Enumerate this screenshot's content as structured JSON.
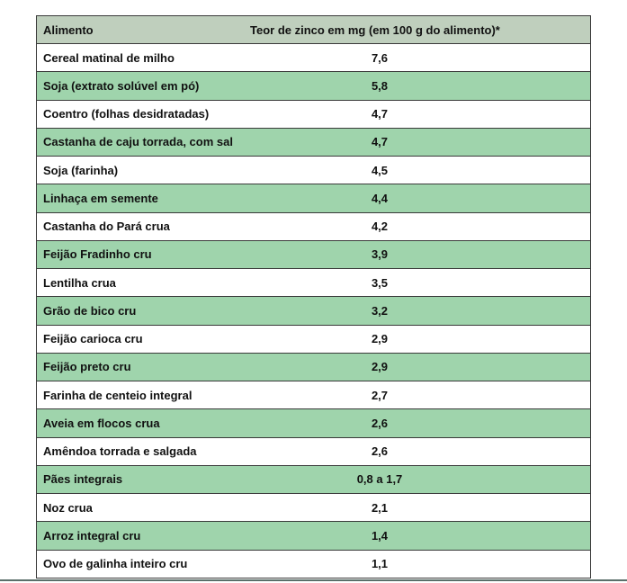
{
  "table": {
    "header": [
      "Alimento",
      "Teor de zinco em mg (em 100 g do alimento)*"
    ],
    "rows": [
      [
        "Cereal matinal de milho",
        "7,6"
      ],
      [
        "Soja (extrato solúvel em pó)",
        "5,8"
      ],
      [
        "Coentro (folhas desidratadas)",
        "4,7"
      ],
      [
        "Castanha de caju torrada, com sal",
        "4,7"
      ],
      [
        "Soja (farinha)",
        "4,5"
      ],
      [
        "Linhaça em semente",
        "4,4"
      ],
      [
        "Castanha do Pará crua",
        "4,2"
      ],
      [
        "Feijão Fradinho cru",
        "3,9"
      ],
      [
        "Lentilha crua",
        "3,5"
      ],
      [
        "Grão de bico cru",
        "3,2"
      ],
      [
        "Feijão carioca cru",
        "2,9"
      ],
      [
        "Feijão preto cru",
        "2,9"
      ],
      [
        "Farinha de centeio integral",
        "2,7"
      ],
      [
        "Aveia em flocos crua",
        "2,6"
      ],
      [
        "Amêndoa torrada e salgada",
        "2,6"
      ],
      [
        "Pães integrais",
        "0,8 a 1,7"
      ],
      [
        "Noz crua",
        "2,1"
      ],
      [
        "Arroz integral cru",
        "1,4"
      ],
      [
        "Ovo de galinha inteiro cru",
        "1,1"
      ]
    ]
  }
}
